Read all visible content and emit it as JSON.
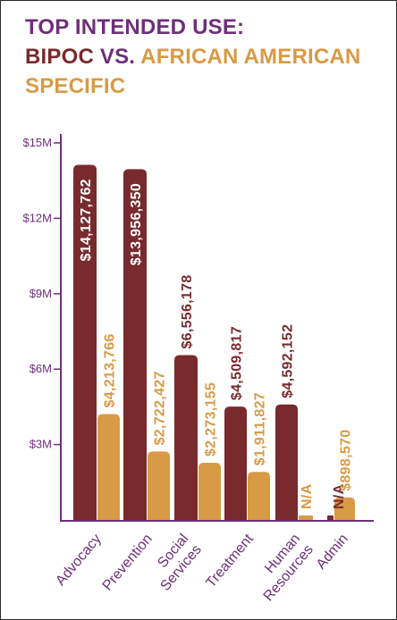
{
  "title": {
    "line1": "TOP INTENDED USE:",
    "bipoc": "BIPOC",
    "vs": " VS. ",
    "african_american": "AFRICAN AMERICAN",
    "specific": "SPECIFIC"
  },
  "colors": {
    "bipoc": "#782a2d",
    "african_american": "#d99a45",
    "title_purple": "#6e2f79",
    "axis": "#6e2f79"
  },
  "chart_data": {
    "type": "bar",
    "categories": [
      "Advocacy",
      "Prevention",
      "Social Services",
      "Treatment",
      "Human Resources",
      "Admin"
    ],
    "category_lines": [
      [
        "Advocacy"
      ],
      [
        "Prevention"
      ],
      [
        "Social",
        "Services"
      ],
      [
        "Treatment"
      ],
      [
        "Human",
        "Resources"
      ],
      [
        "Admin"
      ]
    ],
    "series": [
      {
        "name": "BIPOC",
        "color": "#782a2d",
        "values": [
          14127762,
          13956350,
          6556178,
          4509817,
          4592152,
          null
        ],
        "labels": [
          "$14,127,762",
          "$13,956,350",
          "$6,556,178",
          "$4,509,817",
          "$4,592,152",
          "N/A"
        ]
      },
      {
        "name": "AFRICAN AMERICAN",
        "color": "#d99a45",
        "values": [
          4213766,
          2722427,
          2273155,
          1911827,
          null,
          898570
        ],
        "labels": [
          "$4,213,766",
          "$2,722,427",
          "$2,273,155",
          "$1,911,827",
          "N/A",
          "$898,570"
        ]
      }
    ],
    "yticks": [
      {
        "value": 3000000,
        "label": "$3M"
      },
      {
        "value": 6000000,
        "label": "$6M"
      },
      {
        "value": 9000000,
        "label": "$9M"
      },
      {
        "value": 12000000,
        "label": "$12M"
      },
      {
        "value": 15000000,
        "label": "$15M"
      }
    ],
    "ylim": [
      0,
      15000000
    ],
    "grid": false,
    "legend": "none"
  }
}
